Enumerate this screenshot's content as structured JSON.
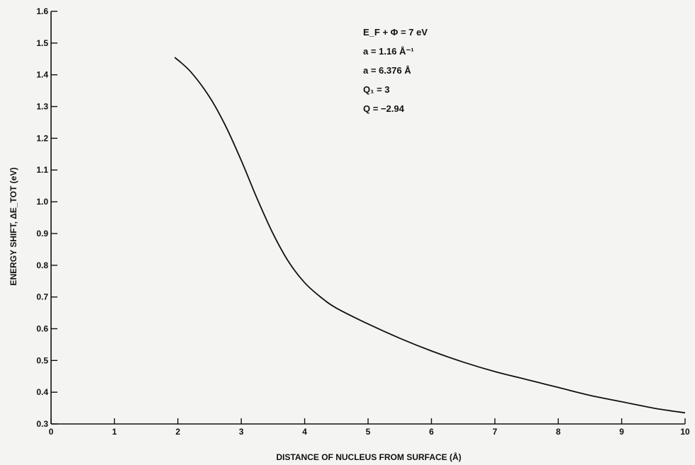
{
  "chart_data": {
    "type": "line",
    "title": "",
    "xlabel": "DISTANCE OF NUCLEUS FROM SURFACE (Å)",
    "ylabel": "ENERGY SHIFT, ΔE_TOT (eV)",
    "xlim": [
      0,
      10
    ],
    "ylim": [
      0.3,
      1.6
    ],
    "x_ticks": [
      "0",
      "1",
      "2",
      "3",
      "4",
      "5",
      "6",
      "7",
      "8",
      "9",
      "10"
    ],
    "y_ticks": [
      "0.3",
      "0.4",
      "0.5",
      "0.6",
      "0.7",
      "0.8",
      "0.9",
      "1.0",
      "1.1",
      "1.2",
      "1.3",
      "1.4",
      "1.5",
      "1.6"
    ],
    "grid": false,
    "series": [
      {
        "x": [
          1.95,
          2.2,
          2.5,
          2.75,
          3.0,
          3.25,
          3.5,
          3.75,
          4.0,
          4.25,
          4.5,
          5.0,
          5.5,
          6.0,
          6.5,
          7.0,
          7.5,
          8.0,
          8.5,
          9.0,
          9.5,
          10.0
        ],
        "y": [
          1.455,
          1.41,
          1.33,
          1.24,
          1.13,
          1.01,
          0.9,
          0.81,
          0.745,
          0.7,
          0.665,
          0.615,
          0.57,
          0.53,
          0.495,
          0.465,
          0.44,
          0.415,
          0.39,
          0.37,
          0.35,
          0.335
        ]
      }
    ],
    "annotations": [
      {
        "text": "E_F + Φ = 7 eV"
      },
      {
        "text": "a = 1.16 Å⁻¹"
      },
      {
        "text": "a = 6.376 Å"
      },
      {
        "text": "Q₁ = 3"
      },
      {
        "text": "Q = −2.94"
      }
    ]
  }
}
